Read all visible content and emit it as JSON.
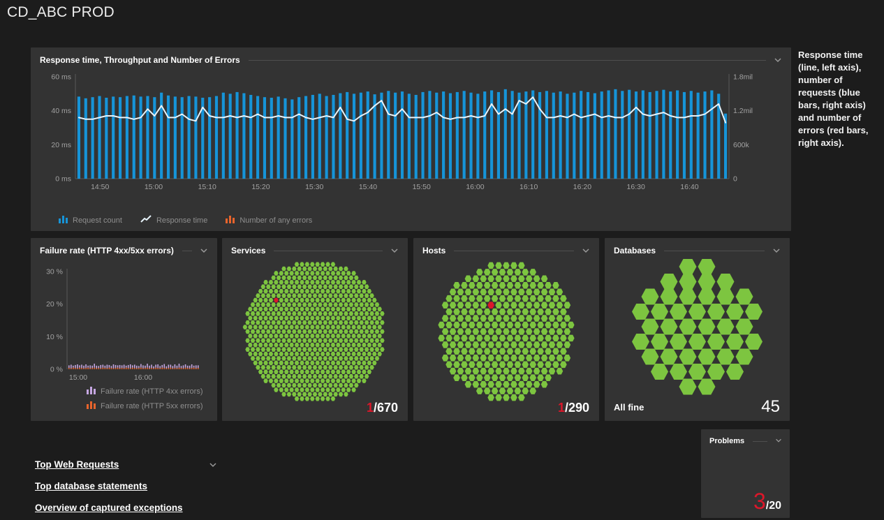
{
  "page": {
    "title": "CD_ABC PROD"
  },
  "annotation": {
    "text": "Response time (line, left axis), number of requests (blue bars, right axis) and number of errors (red bars, right axis)."
  },
  "colors": {
    "page_bg": "#1c1c1c",
    "panel_bg": "#333333",
    "blue": "#1694d8",
    "line": "#e8f4fb",
    "orange": "#e8642c",
    "lavender": "#c6a7e2",
    "green": "#7dc540",
    "red": "#dc172a",
    "axis_text": "#a2a2a2",
    "axis_line": "#5a5a5a"
  },
  "panels": {
    "timeseries": {
      "title": "Response time, Throughput and Number of Errors",
      "legend": [
        {
          "label": "Request count",
          "type": "bars",
          "color": "#1694d8"
        },
        {
          "label": "Response time",
          "type": "line",
          "color": "#e8f4fb"
        },
        {
          "label": "Number of any errors",
          "type": "bars",
          "color": "#e8642c"
        }
      ]
    },
    "failure": {
      "title": "Failure rate (HTTP 4xx/5xx errors)",
      "legend": [
        {
          "label": "Failure rate (HTTP 4xx errors)",
          "type": "bars",
          "color": "#c6a7e2"
        },
        {
          "label": "Failure rate (HTTP 5xx errors)",
          "type": "bars",
          "color": "#e8642c"
        }
      ]
    },
    "services": {
      "title": "Services",
      "affected": "1",
      "total_suffix": "/670"
    },
    "hosts": {
      "title": "Hosts",
      "affected": "1",
      "total_suffix": "/290"
    },
    "databases": {
      "title": "Databases",
      "status_label": "All fine",
      "count": "45"
    },
    "problems": {
      "title": "Problems",
      "open": "3",
      "total_suffix": "/20"
    }
  },
  "links": [
    {
      "label": "Top Web Requests",
      "has_chevron": true
    },
    {
      "label": "Top database statements",
      "has_chevron": false
    },
    {
      "label": "Overview of captured exceptions",
      "has_chevron": false
    }
  ],
  "honeycombs": {
    "services": {
      "total": 670,
      "red_cell": {
        "row": -7,
        "col": -8
      }
    },
    "hosts": {
      "total": 290,
      "red_cell": {
        "row": -4,
        "col": -2
      }
    },
    "databases": {
      "row_counts": [
        2,
        4,
        6,
        7,
        6,
        7,
        6,
        5,
        2
      ]
    }
  },
  "chart_data": [
    {
      "id": "response-throughput",
      "type": "bar",
      "title": "Response time, Throughput and Number of Errors",
      "x_ticks": [
        "14:50",
        "15:00",
        "15:10",
        "15:20",
        "15:30",
        "15:40",
        "15:50",
        "16:00",
        "16:10",
        "16:20",
        "16:30",
        "16:40"
      ],
      "left_axis": {
        "ticks": [
          "0 ms",
          "20 ms",
          "40 ms",
          "60 ms"
        ],
        "range": [
          0,
          60
        ],
        "label": "ms"
      },
      "right_axis": {
        "ticks": [
          "0",
          "600k",
          "1.2mil",
          "1.8mil"
        ],
        "range": [
          0,
          1.8
        ],
        "unit": "mil"
      },
      "legend_position": "bottom",
      "grid": false,
      "series": [
        {
          "name": "Request count",
          "kind": "bar",
          "axis": "right",
          "color": "#1694d8",
          "values": [
            1.45,
            1.42,
            1.44,
            1.46,
            1.43,
            1.45,
            1.44,
            1.46,
            1.47,
            1.45,
            1.46,
            1.44,
            1.52,
            1.47,
            1.45,
            1.44,
            1.46,
            1.45,
            1.43,
            1.44,
            1.46,
            1.52,
            1.5,
            1.53,
            1.51,
            1.48,
            1.46,
            1.44,
            1.43,
            1.45,
            1.42,
            1.4,
            1.44,
            1.46,
            1.48,
            1.5,
            1.46,
            1.48,
            1.51,
            1.53,
            1.5,
            1.52,
            1.54,
            1.49,
            1.52,
            1.55,
            1.52,
            1.54,
            1.5,
            1.48,
            1.53,
            1.55,
            1.52,
            1.54,
            1.51,
            1.53,
            1.55,
            1.52,
            1.5,
            1.54,
            1.56,
            1.53,
            1.58,
            1.55,
            1.52,
            1.54,
            1.56,
            1.53,
            1.55,
            1.52,
            1.54,
            1.5,
            1.52,
            1.55,
            1.53,
            1.51,
            1.54,
            1.56,
            1.58,
            1.55,
            1.57,
            1.54,
            1.56,
            1.53,
            1.55,
            1.57,
            1.54,
            1.56,
            1.53,
            1.55,
            1.52,
            1.54,
            1.56,
            1.5,
            1.15
          ]
        },
        {
          "name": "Response time",
          "kind": "line",
          "axis": "left",
          "color": "#e8f4fb",
          "values": [
            36,
            35,
            35,
            36,
            37,
            37,
            36,
            36,
            35,
            36,
            41,
            37,
            43,
            36,
            36,
            38,
            35,
            34,
            42,
            37,
            36,
            36,
            37,
            36,
            37,
            36,
            38,
            36,
            36,
            37,
            36,
            36,
            38,
            36,
            35,
            36,
            37,
            36,
            42,
            35,
            34,
            37,
            39,
            43,
            46,
            38,
            37,
            41,
            36,
            36,
            36,
            37,
            39,
            36,
            35,
            36,
            36,
            37,
            36,
            37,
            44,
            38,
            41,
            38,
            46,
            44,
            48,
            41,
            36,
            36,
            37,
            36,
            38,
            36,
            37,
            38,
            36,
            37,
            36,
            36,
            38,
            42,
            38,
            37,
            38,
            39,
            37,
            36,
            36,
            37,
            37,
            38,
            41,
            44,
            33
          ]
        },
        {
          "name": "Number of any errors",
          "kind": "bar",
          "axis": "right",
          "color": "#e8642c",
          "values": []
        }
      ]
    },
    {
      "id": "failure-rate",
      "type": "bar",
      "title": "Failure rate (HTTP 4xx/5xx errors)",
      "x_ticks": [
        "15:00",
        "16:00"
      ],
      "y_axis": {
        "ticks": [
          "0 %",
          "10 %",
          "20 %",
          "30 %"
        ],
        "range": [
          0,
          30
        ]
      },
      "grid": false,
      "series": [
        {
          "name": "Failure rate (HTTP 4xx errors)",
          "kind": "bar",
          "color": "#c6a7e2",
          "values": [
            0.8,
            1.1,
            0.6,
            0.9,
            1.2,
            0.7,
            1.0,
            0.8,
            1.1,
            0.6,
            0.9,
            0.7,
            1.2,
            0.8,
            0.6,
            1.0,
            0.9,
            0.7,
            1.1,
            0.8,
            0.6,
            1.2,
            0.9,
            0.7,
            1.0,
            0.8,
            1.1,
            0.6,
            0.9,
            1.2,
            0.7,
            1.0,
            0.8,
            0.6,
            1.1,
            0.9,
            0.7,
            1.2,
            0.8,
            1.0,
            0.6,
            0.9,
            1.1,
            0.7,
            0.8,
            1.2,
            0.6,
            1.0,
            0.9,
            0.7,
            1.1,
            0.8,
            1.2,
            0.6,
            0.9,
            1.0,
            0.7,
            0.8,
            1.1,
            0.6,
            0.9,
            0.8
          ]
        },
        {
          "name": "Failure rate (HTTP 5xx errors)",
          "kind": "bar",
          "color": "#e8642c",
          "values": [
            0.4,
            0.3,
            0.5,
            0.4,
            0.3,
            0.5,
            0.4,
            0.3,
            0.4,
            0.5,
            0.3,
            0.4,
            0.5,
            0.3,
            0.4,
            0.3,
            0.5,
            0.4,
            0.3,
            0.5,
            0.4,
            0.3,
            0.4,
            0.5,
            0.3,
            0.4,
            0.3,
            0.5,
            0.4,
            0.3,
            0.5,
            0.4,
            0.3,
            0.4,
            0.5,
            0.3,
            0.4,
            0.5,
            0.3,
            0.4,
            0.3,
            0.5,
            0.4,
            0.3,
            0.5,
            0.4,
            0.3,
            0.4,
            0.5,
            0.3,
            0.4,
            0.3,
            0.5,
            0.4,
            0.3,
            0.5,
            0.4,
            0.3,
            0.4,
            0.5,
            0.3,
            0.4
          ]
        }
      ]
    }
  ]
}
